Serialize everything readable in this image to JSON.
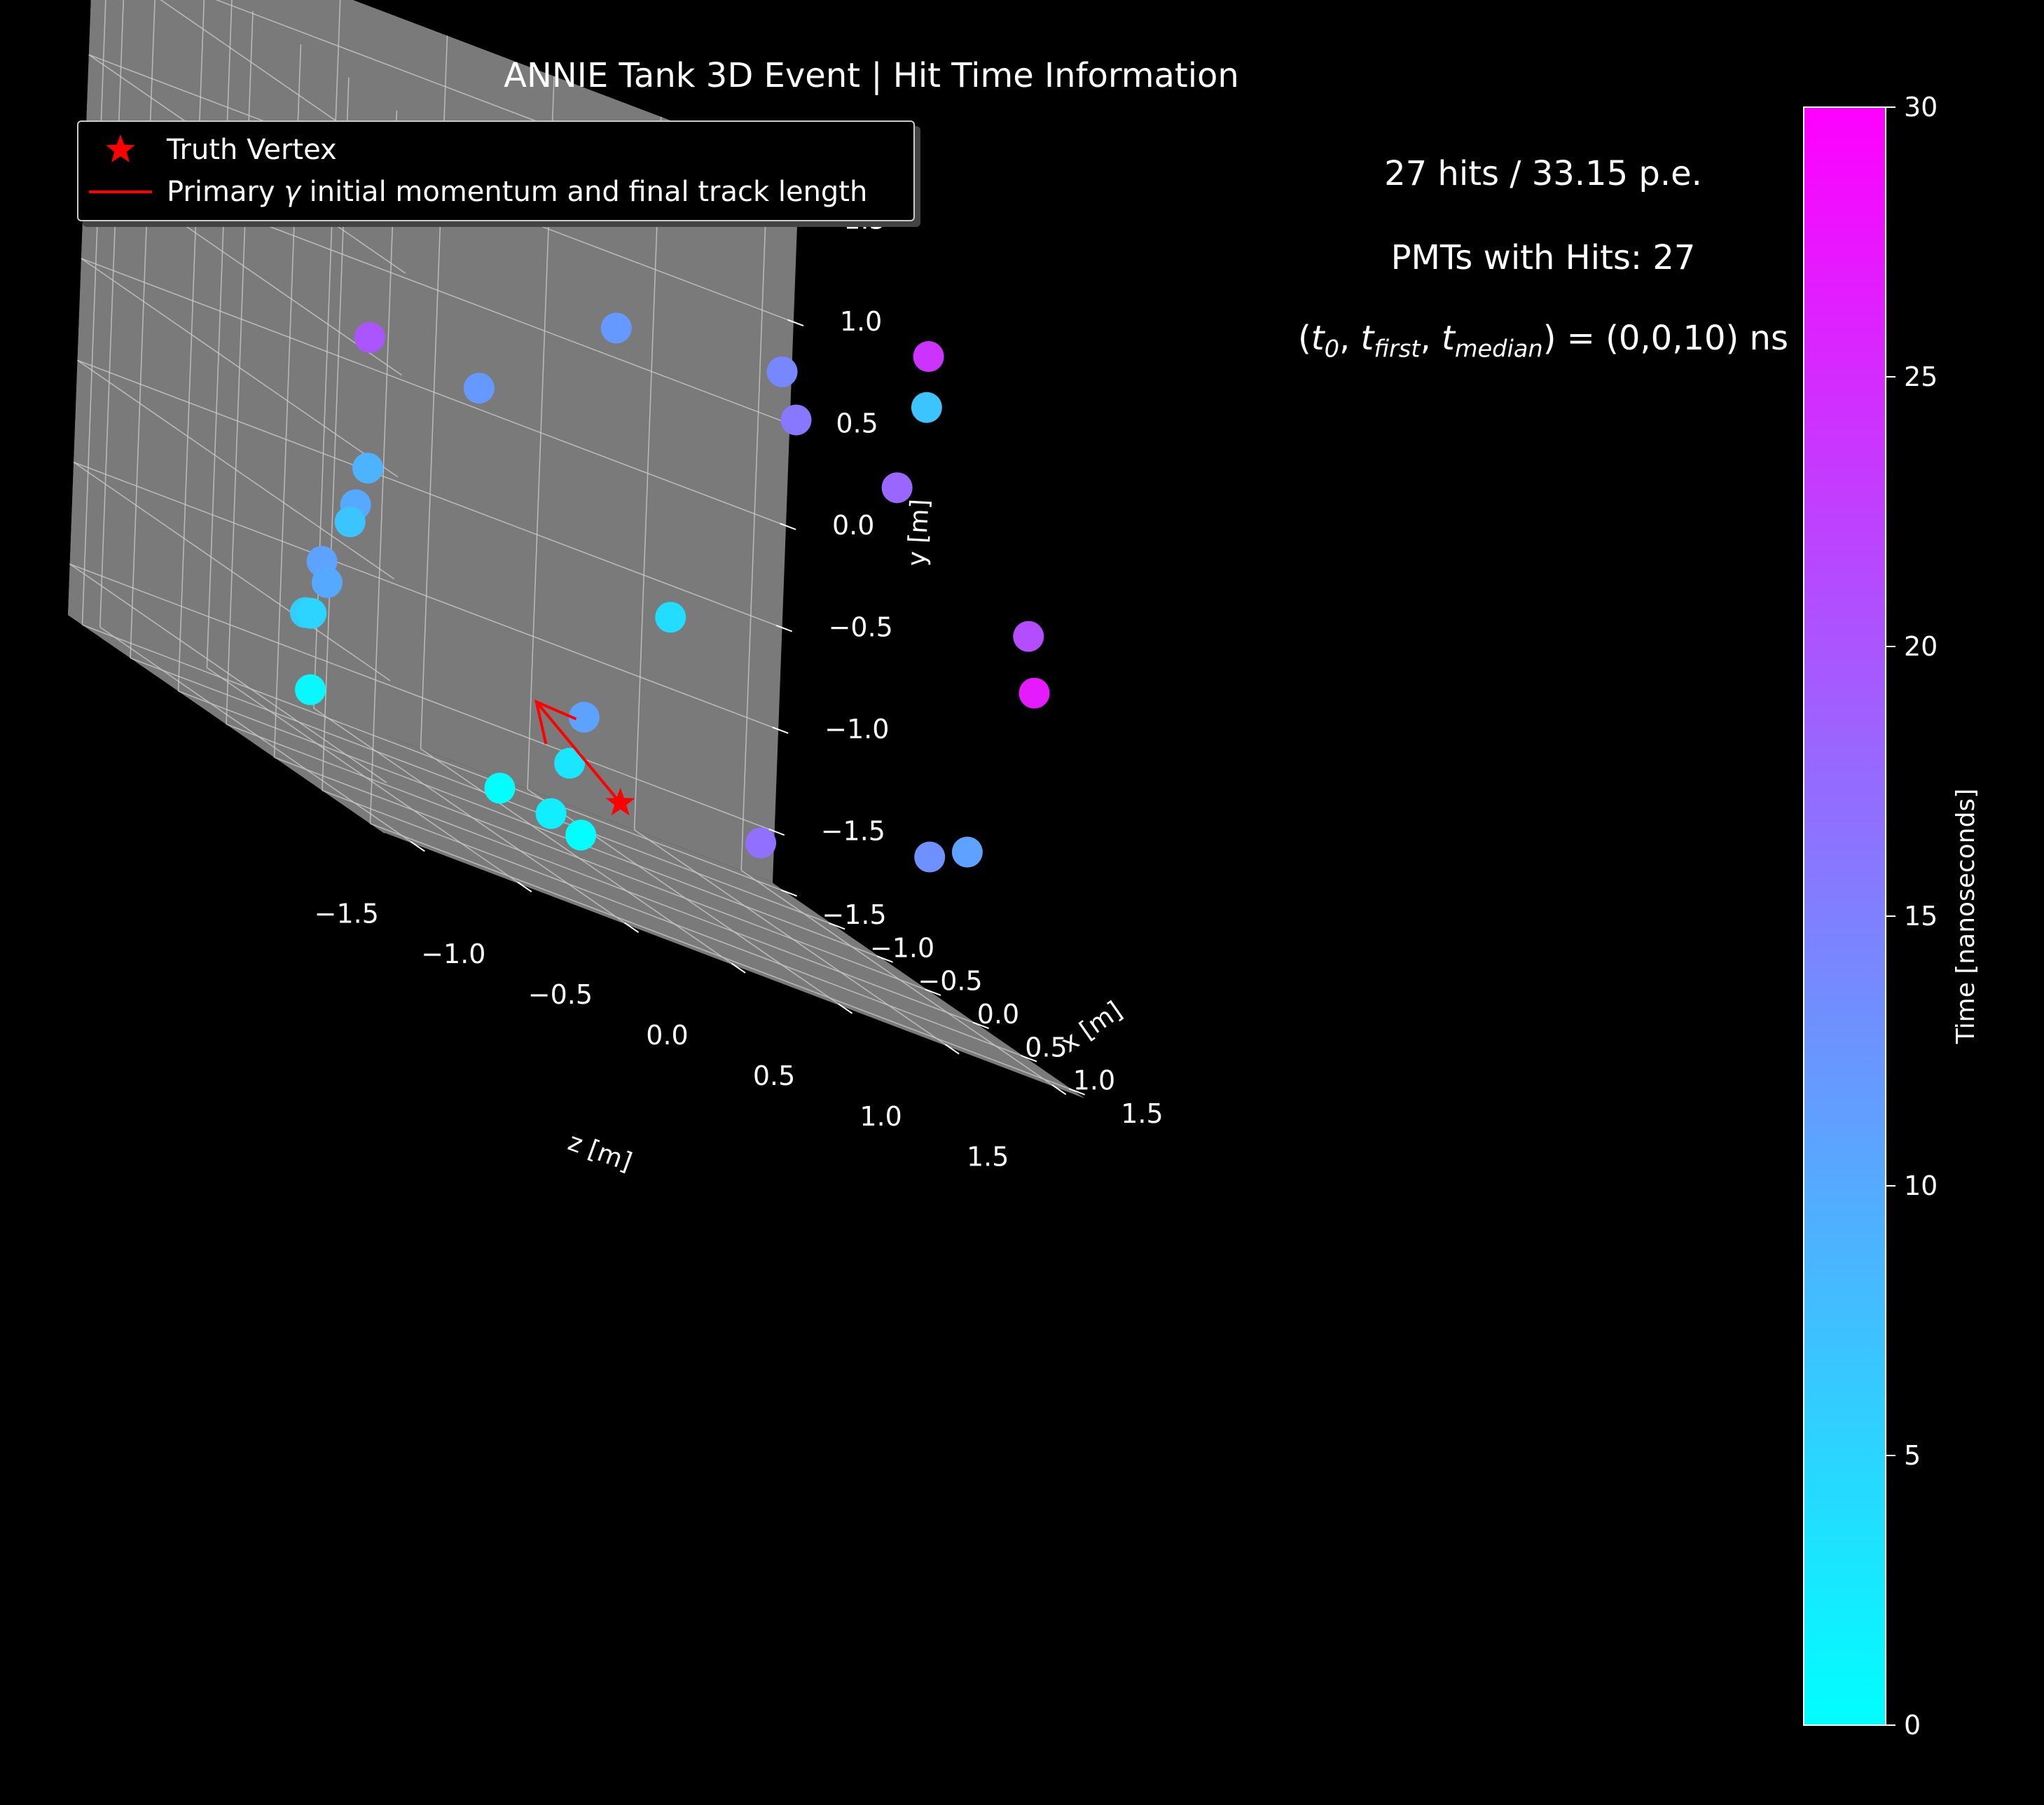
{
  "chart_data": {
    "type": "scatter",
    "projection": "3d",
    "title": "ANNIE Tank 3D Event | Hit Time Information",
    "annotations": {
      "hits": "27 hits / 33.15 p.e.",
      "pmts": "PMTs with Hits: 27",
      "times": "(t0, tfirst, tmedian) = (0,0,10) ns"
    },
    "xlabel": "z [m]",
    "ylabel": "x [m]",
    "zlabel": "y [m]",
    "axis_ranges": {
      "z": [
        -1.65,
        1.65
      ],
      "x": [
        -1.65,
        1.65
      ],
      "y": [
        -1.75,
        1.75
      ]
    },
    "ticks": {
      "z": [
        -1.5,
        -1.0,
        -0.5,
        0.0,
        0.5,
        1.0,
        1.5
      ],
      "x": [
        -1.5,
        -1.0,
        -0.5,
        0.0,
        0.5,
        1.0,
        1.5
      ],
      "y": [
        -1.5,
        -1.0,
        -0.5,
        0.0,
        0.5,
        1.0,
        1.5
      ]
    },
    "tick_labels": {
      "z": [
        "−1.5",
        "−1.0",
        "−0.5",
        "0.0",
        "0.5",
        "1.0",
        "1.5"
      ],
      "x": [
        "−1.5",
        "−1.0",
        "−0.5",
        "0.0",
        "0.5",
        "1.0",
        "1.5"
      ],
      "y": [
        "−1.5",
        "−1.0",
        "−0.5",
        "0.0",
        "0.5",
        "1.0",
        "1.5"
      ]
    },
    "grid": true,
    "pane_color": "#7a7a7a",
    "background_color": "#000000",
    "colormap": "cool",
    "colorbar": {
      "label": "Time [nanoseconds]",
      "range": [
        0,
        30
      ],
      "ticks": [
        0,
        5,
        10,
        15,
        20,
        25,
        30
      ],
      "colors": [
        "#00ffff",
        "#ff00ff"
      ]
    },
    "legend": {
      "placement": "upper-left",
      "entries": [
        {
          "label": "Truth Vertex",
          "marker": "star",
          "color": "#ff0000"
        },
        {
          "label": "Primary γ initial momentum and final track length",
          "marker": "line",
          "color": "#ff0000"
        }
      ]
    },
    "truth_vertex": {
      "z": 0.0,
      "x": 0.4,
      "y": -1.35
    },
    "primary_track": {
      "start": {
        "z": 0.0,
        "x": 0.4,
        "y": -1.35
      },
      "end": {
        "z": -0.45,
        "x": 0.5,
        "y": -1.0
      }
    },
    "hits": [
      {
        "z": -1.2,
        "x": 1.45,
        "y": 0.55,
        "t": 12
      },
      {
        "z": -0.6,
        "x": 1.5,
        "y": 1.1,
        "t": 12
      },
      {
        "z": 0.15,
        "x": 1.55,
        "y": 1.2,
        "t": 14
      },
      {
        "z": 0.2,
        "x": 1.6,
        "y": 1.0,
        "t": 16
      },
      {
        "z": 0.8,
        "x": 1.6,
        "y": 1.55,
        "t": 24
      },
      {
        "z": 0.8,
        "x": 1.6,
        "y": 1.3,
        "t": 7
      },
      {
        "z": 0.7,
        "x": 1.55,
        "y": 0.85,
        "t": 18
      },
      {
        "z": 1.4,
        "x": 1.4,
        "y": 0.35,
        "t": 21
      },
      {
        "z": 1.55,
        "x": 1.15,
        "y": 0.05,
        "t": 27
      },
      {
        "z": 1.45,
        "x": 0.75,
        "y": -0.9,
        "t": 11
      },
      {
        "z": 1.3,
        "x": 0.7,
        "y": -1.0,
        "t": 13
      },
      {
        "z": 0.7,
        "x": 0.3,
        "y": -1.3,
        "t": 17
      },
      {
        "z": -1.1,
        "x": 0.1,
        "y": 0.4,
        "t": 20
      },
      {
        "z": -1.2,
        "x": 0.35,
        "y": -0.2,
        "t": 9
      },
      {
        "z": -1.25,
        "x": 0.35,
        "y": -0.4,
        "t": 10
      },
      {
        "z": -1.25,
        "x": 0.3,
        "y": -0.5,
        "t": 7
      },
      {
        "z": -1.35,
        "x": 0.25,
        "y": -0.75,
        "t": 11
      },
      {
        "z": -1.3,
        "x": 0.2,
        "y": -0.85,
        "t": 10
      },
      {
        "z": -1.35,
        "x": 0.1,
        "y": -1.05,
        "t": 6
      },
      {
        "z": -1.3,
        "x": 0.05,
        "y": -1.05,
        "t": 5
      },
      {
        "z": -1.2,
        "x": -0.15,
        "y": -1.45,
        "t": 1
      },
      {
        "z": -0.3,
        "x": 1.5,
        "y": -0.2,
        "t": 4
      },
      {
        "z": -0.5,
        "x": 1.1,
        "y": -0.9,
        "t": 11
      },
      {
        "z": -0.4,
        "x": 0.75,
        "y": -1.2,
        "t": 3
      },
      {
        "z": -0.25,
        "x": 0.25,
        "y": -1.55,
        "t": 2
      },
      {
        "z": -0.4,
        "x": 0.05,
        "y": -1.55,
        "t": 0
      },
      {
        "z": 0.05,
        "x": -0.1,
        "y": -1.65,
        "t": 0
      }
    ]
  }
}
